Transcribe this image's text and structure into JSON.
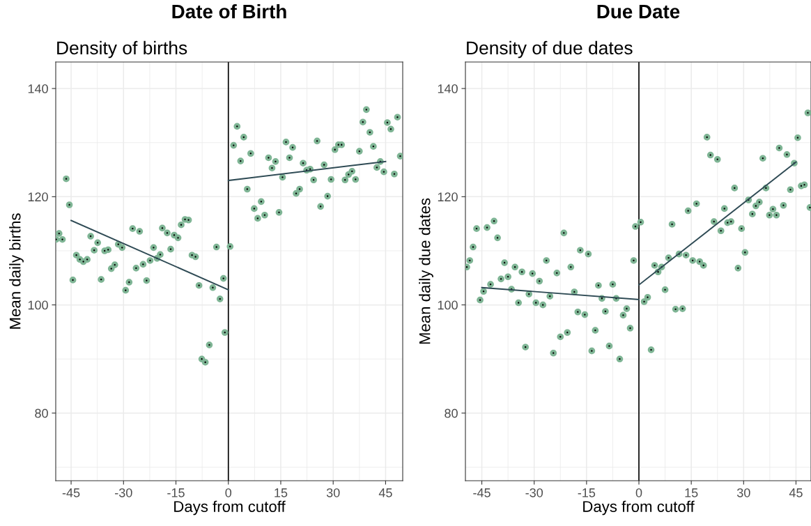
{
  "chart_data": [
    {
      "type": "scatter",
      "title": "Date of Birth",
      "subtitle": "Density of births",
      "xlabel": "Days from cutoff",
      "ylabel": "Mean daily births",
      "xlim": [
        -49.4,
        49.9
      ],
      "ylim": [
        67.5,
        144.9
      ],
      "xticks": [
        -45,
        {
          "value": -37.5,
          "label": null
        },
        -30,
        {
          "value": -22.5,
          "label": null
        },
        -15,
        {
          "value": -7.5,
          "label": null
        },
        0,
        {
          "value": 7.5,
          "label": null
        },
        15,
        {
          "value": 22.5,
          "label": null
        },
        30,
        {
          "value": 37.5,
          "label": null
        },
        45
      ],
      "yticks": [
        {
          "value": 70,
          "label": null
        },
        80,
        {
          "value": 90,
          "label": null
        },
        100,
        {
          "value": 110,
          "label": null
        },
        120,
        {
          "value": 130,
          "label": null
        },
        140
      ],
      "grid": true,
      "ref_lines": [
        {
          "axis": "x",
          "value": 0,
          "color": "#000000"
        }
      ],
      "series": [
        {
          "marker": "circle",
          "color": "#7fb595",
          "x": [
            -49.3,
            -48.45,
            -47.5,
            -46.4,
            -45.5,
            -44.5,
            -43.5,
            -42.5,
            -41.5,
            -40.4,
            -39.4,
            -38.4,
            -37.4,
            -36.4,
            -35.4,
            -34.4,
            -33.5,
            -32.5,
            -31.5,
            -30.4,
            -29.4,
            -28.4,
            -27.4,
            -26.4,
            -25.4,
            -24.4,
            -23.4,
            -22.4,
            -21.4,
            -20.4,
            -19.5,
            -18.9,
            -17.5,
            -16.5,
            -15.5,
            -14.4,
            -13.5,
            -12.4,
            -11.4,
            -10.4,
            -9.4,
            -8.4,
            -7.6,
            -6.6,
            -5.45,
            -4.45,
            -3.4,
            -2.4,
            -1.4,
            -1.0,
            0.5,
            1.5,
            2.5,
            3.5,
            4.4,
            5.4,
            6.4,
            7.4,
            8.4,
            9.4,
            10.4,
            11.5,
            12.5,
            13.5,
            14.5,
            15.5,
            16.5,
            17.5,
            18.4,
            19.4,
            20.4,
            21.4,
            22.4,
            23.4,
            24.4,
            25.4,
            26.4,
            27.4,
            28.4,
            29.4,
            30.5,
            31.5,
            32.4,
            33.4,
            34.4,
            35.4,
            36.4,
            37.5,
            38.5,
            39.5,
            40.5,
            41.5,
            42.5,
            43.5,
            44.5,
            45.5,
            46.5,
            47.5,
            48.4,
            49.2
          ],
          "values": [
            112.1,
            113.2,
            112.1,
            123.3,
            118.5,
            104.6,
            109.2,
            108.4,
            108.0,
            108.4,
            112.7,
            110.1,
            111.5,
            104.7,
            110.0,
            110.2,
            106.7,
            107.4,
            111.2,
            110.6,
            102.7,
            104.2,
            114.1,
            106.8,
            113.6,
            107.5,
            104.5,
            108.2,
            110.6,
            108.6,
            109.3,
            114.2,
            113.3,
            110.3,
            112.9,
            112.4,
            114.8,
            115.8,
            115.7,
            109.2,
            108.9,
            103.6,
            90.0,
            89.4,
            92.6,
            103.2,
            110.7,
            101.1,
            104.9,
            94.9,
            110.8,
            129.5,
            133.0,
            126.6,
            131.0,
            121.4,
            128.0,
            117.8,
            116.0,
            119.1,
            116.6,
            127.2,
            125.3,
            126.5,
            117.1,
            123.6,
            130.1,
            127.2,
            129.1,
            120.6,
            121.4,
            126.2,
            124.9,
            125.1,
            123.1,
            130.3,
            118.2,
            125.9,
            120.1,
            123.2,
            128.7,
            129.6,
            129.6,
            123.1,
            124.1,
            124.7,
            123.2,
            128.4,
            133.8,
            136.1,
            131.9,
            129.3,
            125.4,
            126.5,
            124.6,
            133.7,
            132.5,
            124.2,
            134.7,
            127.5
          ]
        },
        {
          "type": "line",
          "color": "#2e4a54",
          "x": [
            -45,
            0
          ],
          "values": [
            115.6,
            102.8
          ]
        },
        {
          "type": "line",
          "color": "#2e4a54",
          "x": [
            0,
            45
          ],
          "values": [
            123.0,
            126.5
          ]
        }
      ]
    },
    {
      "type": "scatter",
      "title": "Due Date",
      "subtitle": "Density of due dates",
      "xlabel": "Days from cutoff",
      "ylabel": "Mean daily due dates",
      "xlim": [
        -49.7,
        49.3
      ],
      "ylim": [
        67.5,
        144.9
      ],
      "xticks": [
        -45,
        {
          "value": -37.5,
          "label": null
        },
        -30,
        {
          "value": -22.5,
          "label": null
        },
        -15,
        {
          "value": -7.5,
          "label": null
        },
        0,
        {
          "value": 7.5,
          "label": null
        },
        15,
        {
          "value": 22.5,
          "label": null
        },
        30,
        {
          "value": 37.5,
          "label": null
        },
        45
      ],
      "yticks": [
        {
          "value": 70,
          "label": null
        },
        80,
        {
          "value": 90,
          "label": null
        },
        100,
        {
          "value": 110,
          "label": null
        },
        120,
        {
          "value": 130,
          "label": null
        },
        140
      ],
      "grid": true,
      "ref_lines": [
        {
          "axis": "x",
          "value": 0,
          "color": "#000000"
        }
      ],
      "series": [
        {
          "marker": "circle",
          "color": "#7fb595",
          "x": [
            -49.3,
            -48.45,
            -47.5,
            -46.5,
            -45.5,
            -44.5,
            -43.5,
            -42.5,
            -41.5,
            -40.5,
            -39.5,
            -38.5,
            -37.5,
            -36.5,
            -35.5,
            -34.5,
            -33.5,
            -32.5,
            -31.5,
            -30.5,
            -29.5,
            -28.5,
            -27.5,
            -26.5,
            -25.5,
            -24.5,
            -23.5,
            -22.5,
            -21.5,
            -20.5,
            -19.5,
            -18.5,
            -17.5,
            -16.8,
            -15.5,
            -14.5,
            -13.5,
            -12.5,
            -11.6,
            -10.6,
            -9.6,
            -8.5,
            -7.5,
            -6.5,
            -5.5,
            -4.5,
            -3.5,
            -2.5,
            -1.5,
            -1.0,
            0.5,
            1.5,
            2.5,
            3.5,
            4.5,
            5.5,
            6.5,
            7.5,
            8.5,
            9.5,
            10.5,
            11.5,
            12.5,
            13.5,
            14.1,
            15.4,
            16.5,
            17.4,
            18.5,
            19.5,
            20.5,
            21.5,
            22.5,
            23.5,
            24.5,
            25.4,
            26.4,
            27.4,
            28.4,
            29.4,
            30.4,
            31.4,
            32.5,
            33.5,
            34.5,
            35.5,
            36.4,
            37.4,
            38.4,
            39.4,
            40.2,
            41.4,
            42.4,
            43.4,
            44.5,
            45.5,
            46.5,
            47.4,
            48.4,
            49.0
          ],
          "values": [
            107.0,
            108.2,
            110.7,
            114.1,
            100.9,
            102.5,
            114.3,
            103.8,
            115.5,
            112.4,
            104.8,
            107.8,
            105.2,
            102.9,
            107.0,
            100.4,
            106.1,
            92.2,
            102.0,
            105.8,
            100.4,
            104.4,
            100.0,
            108.2,
            101.6,
            91.1,
            105.9,
            94.1,
            113.3,
            94.9,
            107.0,
            102.4,
            98.7,
            110.1,
            98.2,
            109.4,
            91.5,
            95.3,
            103.6,
            101.2,
            98.8,
            92.4,
            103.8,
            101.2,
            90.0,
            98.1,
            99.3,
            95.7,
            108.2,
            114.5,
            115.3,
            100.6,
            101.4,
            91.7,
            107.3,
            106.1,
            107.0,
            102.8,
            108.7,
            114.9,
            99.2,
            109.4,
            99.3,
            109.2,
            117.4,
            108.2,
            118.7,
            108.0,
            107.3,
            131.0,
            127.7,
            115.4,
            126.9,
            113.7,
            117.8,
            115.2,
            115.4,
            121.6,
            106.8,
            114.1,
            109.7,
            119.4,
            116.8,
            118.3,
            119.0,
            127.1,
            121.6,
            116.6,
            117.7,
            116.6,
            129.0,
            118.4,
            127.8,
            121.3,
            126.2,
            130.9,
            122.0,
            122.2,
            135.5,
            118.0
          ]
        },
        {
          "type": "line",
          "color": "#2e4a54",
          "x": [
            -45,
            0
          ],
          "values": [
            103.2,
            101.0
          ]
        },
        {
          "type": "line",
          "color": "#2e4a54",
          "x": [
            0,
            45
          ],
          "values": [
            103.7,
            126.4
          ]
        }
      ]
    }
  ]
}
